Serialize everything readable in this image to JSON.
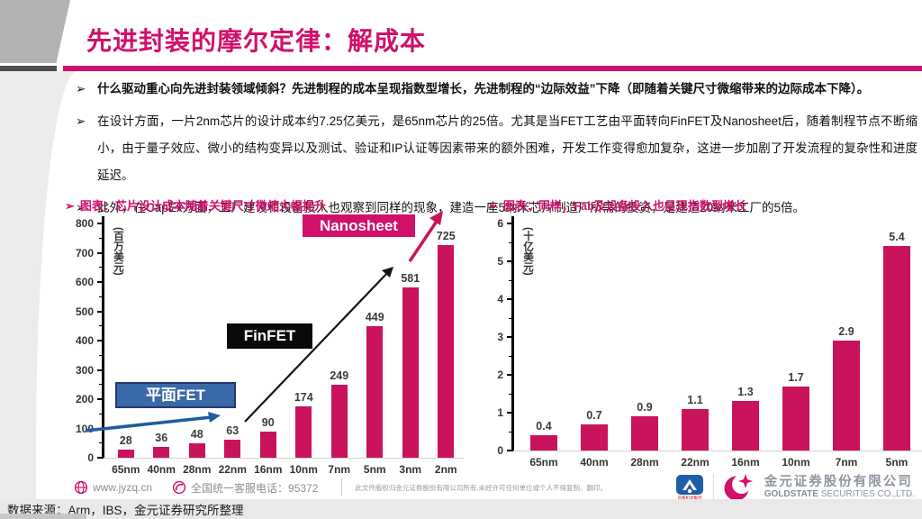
{
  "ui": {
    "bullet_marker": "➢"
  },
  "header": {
    "title": "先进封装的摩尔定律：解成本"
  },
  "bullets": [
    "什么驱动重心向先进封装领域倾斜？先进制程的成本呈现指数型增长，先进制程的“边际效益”下降（即随着关键尺寸微缩带来的边际成本下降）。",
    "在设计方面，一片2nm芯片的设计成本约7.25亿美元，是65nm芯片的25倍。尤其是当FET工艺由平面转向FinFET及Nanosheet后，随着制程节点不断缩小，由于量子效应、微小的结构变异以及测试、验证和IP认证等因素带来的额外困难，开发工作变得愈加复杂，这进一步加剧了开发流程的复杂性和进度延迟。",
    "此外，在CapEx方面，工厂建设和设备投入也观察到同样的现象，建造一座5纳米芯片制造厂所需的投资，是建造20纳米工厂的5倍。"
  ],
  "chart_data": [
    {
      "type": "bar",
      "title": "图表：芯片设计成本随着关键尺寸微缩大幅提升",
      "ylabel": "(百万美元)",
      "ylim": [
        0,
        800
      ],
      "yticks": [
        0,
        100,
        200,
        300,
        400,
        500,
        600,
        700,
        800
      ],
      "minor_tick_step": 50,
      "grid": false,
      "legend": "none",
      "categories": [
        "65nm",
        "40nm",
        "28nm",
        "22nm",
        "16nm",
        "10nm",
        "7nm",
        "5nm",
        "3nm",
        "2nm"
      ],
      "values": [
        28,
        36,
        48,
        63,
        90,
        174,
        249,
        449,
        581,
        725
      ],
      "annotations": [
        {
          "label": "平面FET",
          "style": "blue-box-with-blue-arrow"
        },
        {
          "label": "FinFET",
          "style": "black-box-with-black-arrow"
        },
        {
          "label": "Nanosheet",
          "style": "magenta-box-with-magenta-arrow"
        }
      ]
    },
    {
      "type": "bar",
      "title": "图表：同样，Fab及设备投入也呈现指数型增长",
      "ylabel": "(十亿美元)",
      "ylim": [
        0,
        6
      ],
      "yticks": [
        0,
        1,
        2,
        3,
        4,
        5,
        6
      ],
      "minor_tick_step": 0.5,
      "grid": false,
      "legend": "none",
      "categories": [
        "65nm",
        "40nm",
        "28nm",
        "22nm",
        "16nm",
        "10nm",
        "7nm",
        "5nm"
      ],
      "values": [
        0.4,
        0.7,
        0.9,
        1.1,
        1.3,
        1.7,
        2.9,
        5.4
      ]
    }
  ],
  "footer": {
    "website": "www.jyzq.cn",
    "hotline": "全国统一客服电话：95372",
    "disclaimer": "此文件版权归金元证券股份有限公司所有,未经许可任何单位或个人不得复制、翻印。",
    "airport_logo_text": "首都机场集团",
    "company_cn": "金元证券股份有限公司",
    "company_en_bold": "GOLDSTATE",
    "company_en_rest": " SECURITIES  CO.,LTD."
  },
  "source_bar": {
    "text": "数据来源：Arm，IBS，金元证券研究所整理"
  },
  "colors": {
    "accent": "#D0106A",
    "bar": "#C9135C",
    "planar_box_fill": "#3A69A9",
    "planar_box_border": "#27376E",
    "finfet_box_fill": "#0A0A0A",
    "arrow_blue": "#1E5C9E",
    "arrow_black": "#141414",
    "arrow_magenta": "#C9135C",
    "airport_logo_blue": "#1F5CA9",
    "airport_logo_red": "#C01313"
  }
}
